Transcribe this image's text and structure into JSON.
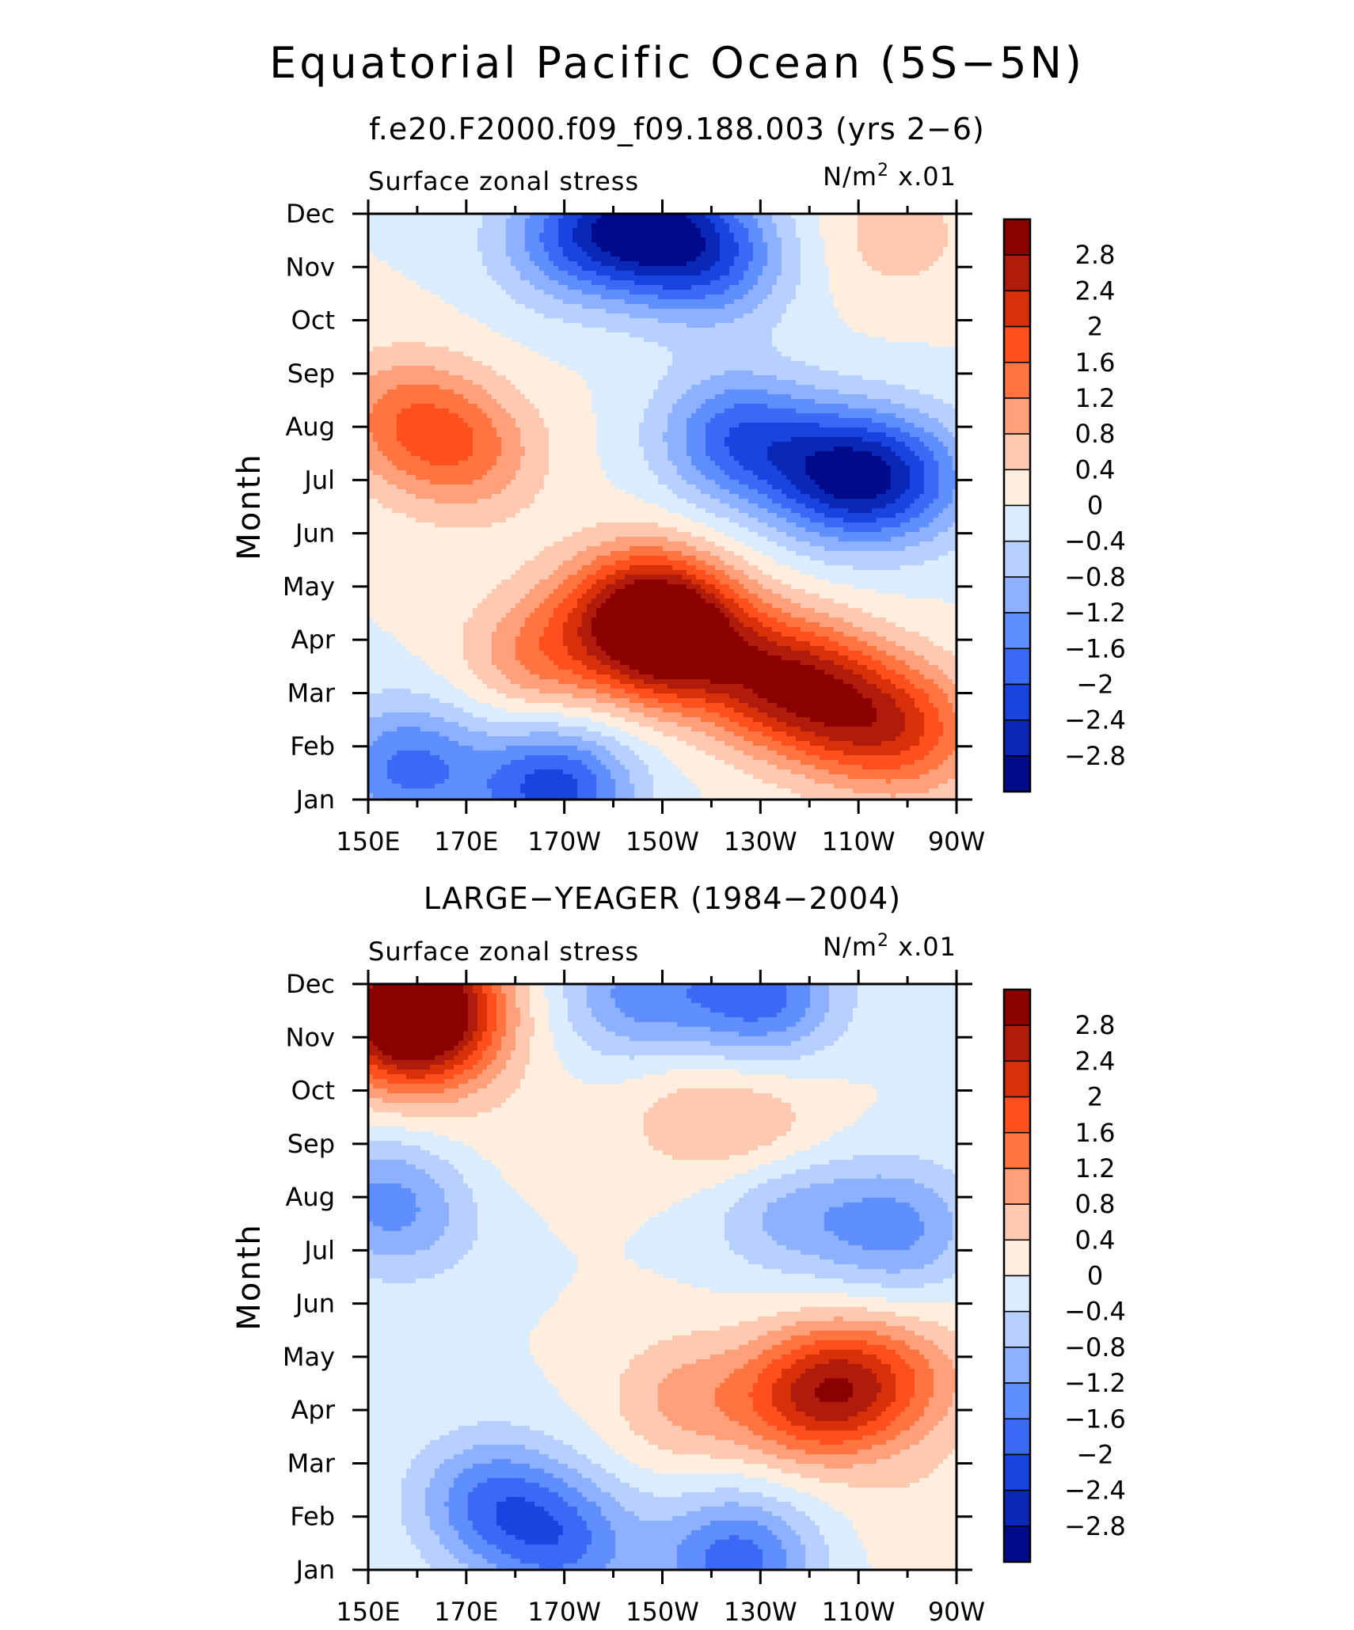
{
  "title": "Equatorial Pacific Ocean (5S−5N)",
  "subtitle": "f.e20.F2000.f09_f09.188.003 (yrs 2−6)",
  "colorbar": {
    "levels": [
      "2.8",
      "2.4",
      "2",
      "1.6",
      "1.2",
      "0.8",
      "0.4",
      "0",
      "−0.4",
      "−0.8",
      "−1.2",
      "−1.6",
      "−2",
      "−2.4",
      "−2.8"
    ],
    "colors": [
      "#8b0000",
      "#b01b0c",
      "#d83008",
      "#ff4f1c",
      "#ff7440",
      "#ffa07a",
      "#ffc8b0",
      "#ffeedd",
      "#dcecff",
      "#b8d0ff",
      "#8db1ff",
      "#5e8eff",
      "#3a6af5",
      "#1944e0",
      "#0a28b8",
      "#000a8b"
    ]
  },
  "chart_data": [
    {
      "type": "heatmap",
      "panel_title": "",
      "left_label": "Surface zonal stress",
      "right_label_base": "N/m",
      "right_label_sup": "2",
      "right_label_tail": " x.01",
      "xlabel": "",
      "ylabel": "Month",
      "x_tick_labels": [
        "150E",
        "170E",
        "170W",
        "150W",
        "130W",
        "110W",
        "90W"
      ],
      "x_ticks_deg_east": [
        150,
        170,
        190,
        210,
        230,
        250,
        270
      ],
      "xlim": [
        150,
        270
      ],
      "y_tick_labels": [
        "Jan",
        "Feb",
        "Mar",
        "Apr",
        "May",
        "Jun",
        "Jul",
        "Aug",
        "Sep",
        "Oct",
        "Nov",
        "Dec"
      ],
      "ylim": [
        1,
        12
      ],
      "units": "N/m² x.01",
      "features": [
        {
          "lon": 170,
          "month": 7.5,
          "value": 1.2
        },
        {
          "lon": 157,
          "month": 8.2,
          "value": 1.2
        },
        {
          "lon": 185,
          "month": 3.7,
          "value": 1.2
        },
        {
          "lon": 205,
          "month": 4.6,
          "value": 2.0
        },
        {
          "lon": 213,
          "month": 4.0,
          "value": 2.8
        },
        {
          "lon": 235,
          "month": 3.2,
          "value": 2.3
        },
        {
          "lon": 250,
          "month": 2.6,
          "value": 1.6
        },
        {
          "lon": 262,
          "month": 2.2,
          "value": 1.2
        },
        {
          "lon": 158,
          "month": 1.6,
          "value": -1.7
        },
        {
          "lon": 188,
          "month": 1.2,
          "value": -2.2
        },
        {
          "lon": 205,
          "month": 11.8,
          "value": -2.3
        },
        {
          "lon": 220,
          "month": 11.2,
          "value": -1.8
        },
        {
          "lon": 190,
          "month": 11.5,
          "value": -1.2
        },
        {
          "lon": 225,
          "month": 7.8,
          "value": -1.8
        },
        {
          "lon": 246,
          "month": 7.1,
          "value": -2.3
        },
        {
          "lon": 260,
          "month": 7.0,
          "value": -1.4
        },
        {
          "lon": 258,
          "month": 11.6,
          "value": 0.6
        }
      ]
    },
    {
      "type": "heatmap",
      "panel_title": "LARGE−YEAGER (1984−2004)",
      "left_label": "Surface zonal stress",
      "right_label_base": "N/m",
      "right_label_sup": "2",
      "right_label_tail": " x.01",
      "xlabel": "",
      "ylabel": "Month",
      "x_tick_labels": [
        "150E",
        "170E",
        "170W",
        "150W",
        "130W",
        "110W",
        "90W"
      ],
      "x_ticks_deg_east": [
        150,
        170,
        190,
        210,
        230,
        250,
        270
      ],
      "xlim": [
        150,
        270
      ],
      "y_tick_labels": [
        "Jan",
        "Feb",
        "Mar",
        "Apr",
        "May",
        "Jun",
        "Jul",
        "Aug",
        "Sep",
        "Oct",
        "Nov",
        "Dec"
      ],
      "ylim": [
        1,
        12
      ],
      "units": "N/m² x.01",
      "features": [
        {
          "lon": 160,
          "month": 11.8,
          "value": 2.4
        },
        {
          "lon": 156,
          "month": 11.0,
          "value": 1.5
        },
        {
          "lon": 165,
          "month": 11.2,
          "value": 1.0
        },
        {
          "lon": 180,
          "month": 9.0,
          "value": 0.2
        },
        {
          "lon": 215,
          "month": 9.6,
          "value": 0.5
        },
        {
          "lon": 230,
          "month": 9.2,
          "value": 0.7
        },
        {
          "lon": 215,
          "month": 4.2,
          "value": 0.9
        },
        {
          "lon": 240,
          "month": 4.2,
          "value": 1.5
        },
        {
          "lon": 248,
          "month": 4.5,
          "value": 1.4
        },
        {
          "lon": 262,
          "month": 4.6,
          "value": 0.7
        },
        {
          "lon": 160,
          "month": 7.5,
          "value": -0.5
        },
        {
          "lon": 152,
          "month": 8.0,
          "value": -1.0
        },
        {
          "lon": 175,
          "month": 2.3,
          "value": -1.5
        },
        {
          "lon": 190,
          "month": 1.5,
          "value": -1.5
        },
        {
          "lon": 225,
          "month": 1.2,
          "value": -1.8
        },
        {
          "lon": 205,
          "month": 11.8,
          "value": -1.3
        },
        {
          "lon": 230,
          "month": 11.8,
          "value": -1.8
        },
        {
          "lon": 235,
          "month": 7.8,
          "value": -1.0
        },
        {
          "lon": 258,
          "month": 7.4,
          "value": -1.3
        },
        {
          "lon": 265,
          "month": 2.0,
          "value": 0.3
        }
      ]
    }
  ]
}
